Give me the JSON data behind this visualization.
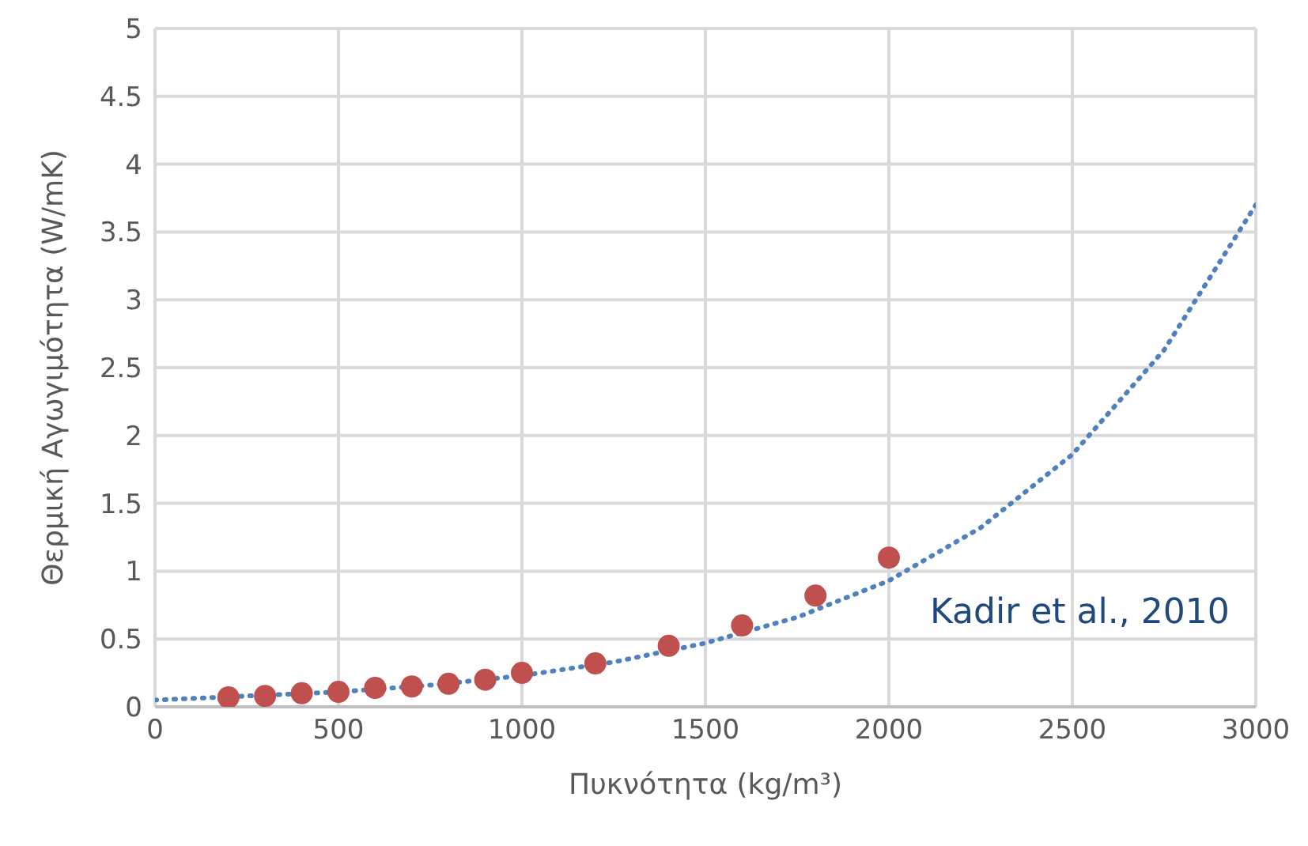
{
  "chart_data": {
    "type": "scatter",
    "xlabel": "Πυκνότητα (kg/m³)",
    "ylabel": "Θερμική Αγωγιμότητα (W/mK)",
    "xlim": [
      0,
      3000
    ],
    "xticks": [
      0,
      500,
      1000,
      1500,
      2000,
      2500,
      3000
    ],
    "ylim": [
      0,
      5
    ],
    "yticks": [
      0,
      0.5,
      1,
      1.5,
      2,
      2.5,
      3,
      3.5,
      4,
      4.5,
      5
    ],
    "grid": true,
    "marker": "circle",
    "series": [
      {
        "type": "scatter",
        "color": "#c0504d",
        "x": [
          200,
          300,
          400,
          500,
          600,
          700,
          800,
          900,
          1000,
          1200,
          1400,
          1600,
          1800,
          2000
        ],
        "values": [
          0.07,
          0.08,
          0.1,
          0.11,
          0.14,
          0.15,
          0.17,
          0.2,
          0.25,
          0.32,
          0.45,
          0.6,
          0.82,
          1.1
        ]
      },
      {
        "type": "line",
        "color": "#4f81bd",
        "line_style": "dotted",
        "marker": "none",
        "x": [
          0,
          250,
          500,
          750,
          1000,
          1250,
          1500,
          1750,
          2000,
          2250,
          2500,
          2750,
          3000
        ],
        "values": [
          0.05,
          0.08,
          0.11,
          0.16,
          0.23,
          0.33,
          0.47,
          0.66,
          0.93,
          1.32,
          1.86,
          2.63,
          3.7
        ]
      }
    ],
    "annotations": [
      "Kadir et al., 2010"
    ]
  }
}
